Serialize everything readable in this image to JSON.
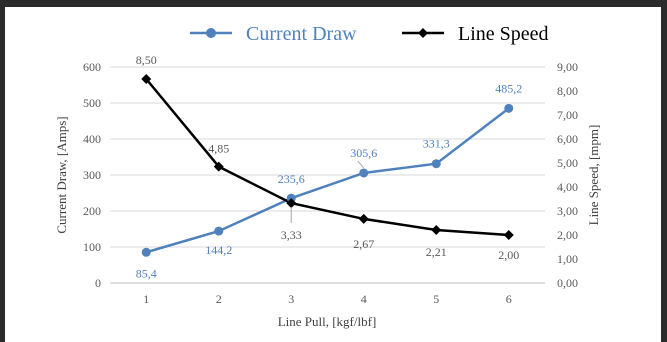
{
  "chart_data": {
    "type": "line",
    "categories": [
      "1",
      "2",
      "3",
      "4",
      "5",
      "6"
    ],
    "xlabel": "Line Pull, [kgf/lbf]",
    "ylabel_left": "Current Draw, [Amps]",
    "ylabel_right": "Line Speed, [mpm]",
    "ylim_left": [
      0,
      600
    ],
    "ylim_right": [
      0,
      9
    ],
    "left_ticks": [
      "0",
      "100",
      "200",
      "300",
      "400",
      "500",
      "600"
    ],
    "right_ticks": [
      "0,00",
      "1,00",
      "2,00",
      "3,00",
      "4,00",
      "5,00",
      "6,00",
      "7,00",
      "8,00",
      "9,00"
    ],
    "grid": "horizontal",
    "legend_position": "top",
    "series": [
      {
        "name": "Current Draw",
        "axis": "left",
        "color": "#4f81bd",
        "marker": "circle",
        "values": [
          85.4,
          144.2,
          235.6,
          305.6,
          331.3,
          485.2
        ],
        "labels": [
          "85,4",
          "144,2",
          "235,6",
          "305,6",
          "331,3",
          "485,2"
        ]
      },
      {
        "name": "Line Speed",
        "axis": "right",
        "color": "#000000",
        "marker": "diamond",
        "values": [
          8.5,
          4.85,
          3.33,
          2.67,
          2.21,
          2.0
        ],
        "labels": [
          "8,50",
          "4,85",
          "3,33",
          "2,67",
          "2,21",
          "2,00"
        ]
      }
    ]
  }
}
